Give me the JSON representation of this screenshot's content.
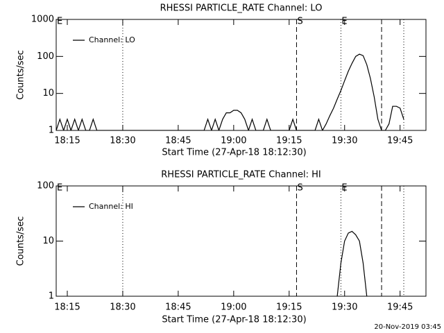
{
  "chart_data": [
    {
      "type": "line",
      "title": "RHESSI PARTICLE_RATE Channel: LO",
      "x_label": "Start Time (27-Apr-18 18:12:30)",
      "y_label": "Counts/sec",
      "log_y": true,
      "xlim": [
        "18:12",
        "19:52"
      ],
      "xticks": [
        "18:15",
        "18:30",
        "18:45",
        "19:00",
        "19:15",
        "19:30",
        "19:45"
      ],
      "ylim": [
        1,
        1000
      ],
      "yticks": [
        1,
        10,
        100,
        1000
      ],
      "legend": "upper left",
      "vlines": [
        {
          "x": "18:30",
          "style": "dotted"
        },
        {
          "x": "19:17",
          "style": "dashed"
        },
        {
          "x": "19:29",
          "style": "dotted"
        },
        {
          "x": "19:40",
          "style": "dashed"
        },
        {
          "x": "19:46",
          "style": "dotted"
        }
      ],
      "annotations": [
        {
          "text": "E",
          "x": "18:12"
        },
        {
          "text": "S",
          "x": "19:17"
        },
        {
          "text": "E",
          "x": "19:29"
        }
      ],
      "x": [
        "18:12",
        "18:13",
        "18:14",
        "18:15",
        "18:16",
        "18:17",
        "18:18",
        "18:19",
        "18:20",
        "18:21",
        "18:22",
        "18:23",
        "18:52",
        "18:53",
        "18:54",
        "18:55",
        "18:56",
        "18:57",
        "18:58",
        "18:59",
        "19:00",
        "19:01",
        "19:02",
        "19:03",
        "19:04",
        "19:05",
        "19:06",
        "19:08",
        "19:09",
        "19:10",
        "19:15",
        "19:16",
        "19:17",
        "19:22",
        "19:23",
        "19:24",
        "19:25",
        "19:26",
        "19:27",
        "19:28",
        "19:29",
        "19:30",
        "19:31",
        "19:32",
        "19:33",
        "19:34",
        "19:35",
        "19:36",
        "19:37",
        "19:38",
        "19:39",
        "19:40",
        "19:41",
        "19:42",
        "19:43",
        "19:44",
        "19:45",
        "19:46"
      ],
      "series": [
        {
          "name": "Channel: LO",
          "color": "#000000",
          "values": [
            1,
            2,
            1,
            2,
            1,
            2,
            1,
            2,
            1,
            1,
            2,
            1,
            1,
            2,
            1,
            2,
            1,
            2,
            3,
            3,
            3.5,
            3.5,
            3,
            2,
            1,
            2,
            1,
            1,
            2,
            1,
            1,
            2,
            1,
            1,
            2,
            1,
            1.5,
            2.5,
            4,
            7,
            12,
            22,
            40,
            65,
            100,
            115,
            105,
            60,
            25,
            8,
            2,
            1,
            1,
            1.5,
            4.5,
            4.5,
            4,
            2
          ]
        }
      ]
    },
    {
      "type": "line",
      "title": "RHESSI PARTICLE_RATE Channel: HI",
      "x_label": "Start Time (27-Apr-18 18:12:30)",
      "y_label": "Counts/sec",
      "log_y": true,
      "xlim": [
        "18:12",
        "19:52"
      ],
      "xticks": [
        "18:15",
        "18:30",
        "18:45",
        "19:00",
        "19:15",
        "19:30",
        "19:45"
      ],
      "ylim": [
        1,
        100
      ],
      "yticks": [
        1,
        10,
        100
      ],
      "legend": "upper left",
      "vlines": [
        {
          "x": "18:30",
          "style": "dotted"
        },
        {
          "x": "19:17",
          "style": "dashed"
        },
        {
          "x": "19:29",
          "style": "dotted"
        },
        {
          "x": "19:40",
          "style": "dashed"
        },
        {
          "x": "19:46",
          "style": "dotted"
        }
      ],
      "annotations": [
        {
          "text": "E",
          "x": "18:12"
        },
        {
          "text": "S",
          "x": "19:17"
        },
        {
          "text": "E",
          "x": "19:29"
        }
      ],
      "x": [
        "19:28",
        "19:29",
        "19:30",
        "19:31",
        "19:32",
        "19:33",
        "19:34",
        "19:35",
        "19:36"
      ],
      "series": [
        {
          "name": "Channel: HI",
          "color": "#000000",
          "values": [
            1,
            4,
            10,
            14,
            15,
            13,
            10,
            4,
            1
          ]
        }
      ]
    }
  ],
  "footer": "20-Nov-2019 03:45"
}
